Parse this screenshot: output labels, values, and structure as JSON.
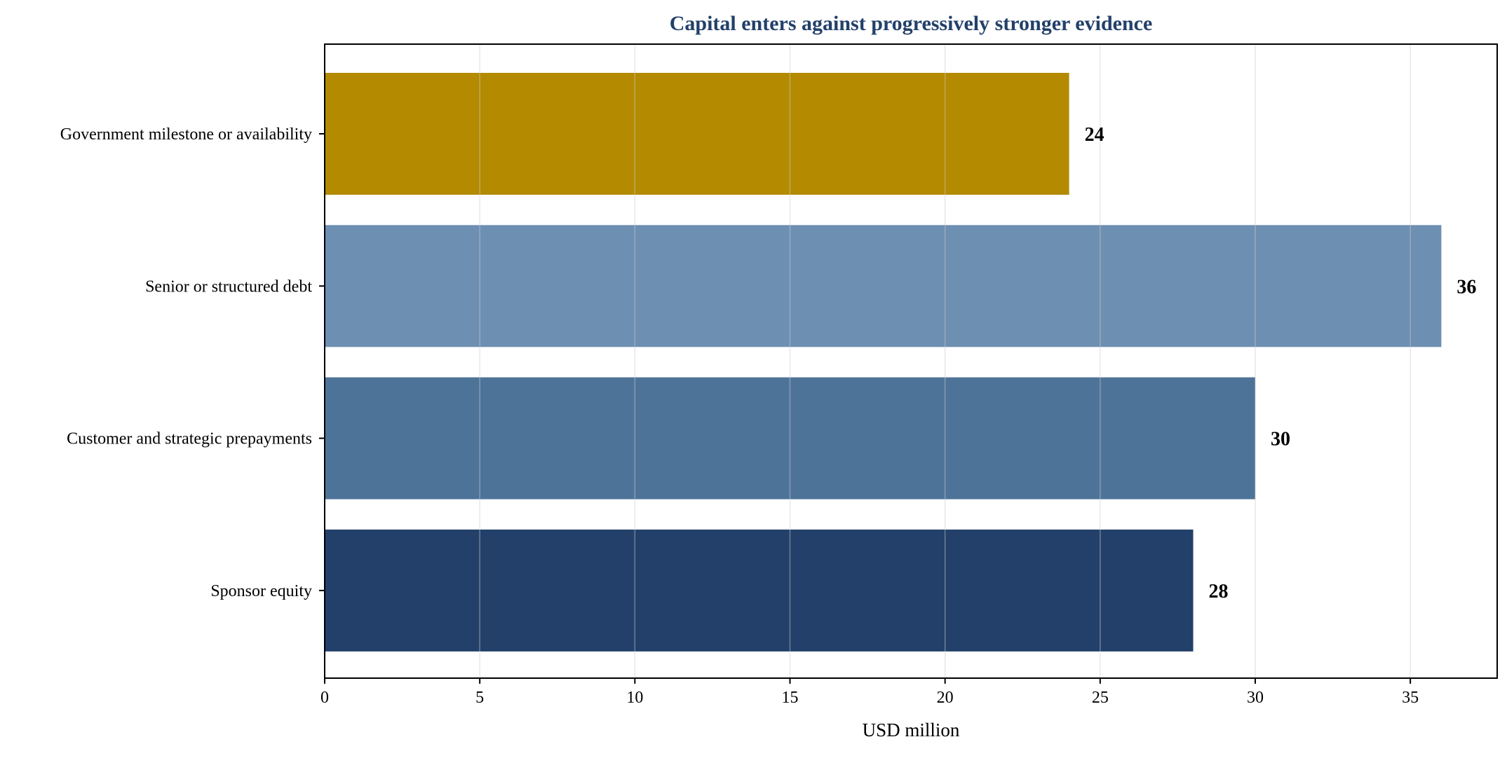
{
  "chart_data": {
    "type": "bar",
    "orientation": "horizontal",
    "title": "Capital enters against progressively stronger evidence",
    "xlabel": "USD million",
    "ylabel": "",
    "categories": [
      "Government milestone or availability",
      "Senior or structured debt",
      "Customer and strategic prepayments",
      "Sponsor equity"
    ],
    "values": [
      24,
      36,
      30,
      28
    ],
    "data_labels": [
      "24",
      "36",
      "30",
      "28"
    ],
    "bar_colors": [
      "#b38a00",
      "#6d8fb2",
      "#4e7399",
      "#224069"
    ],
    "title_color": "#224069",
    "xlim": [
      0,
      37.8
    ],
    "xticks": [
      0,
      5,
      10,
      15,
      20,
      25,
      30,
      35
    ],
    "xtick_labels": [
      "0",
      "5",
      "10",
      "15",
      "20",
      "25",
      "30",
      "35"
    ],
    "grid": "vertical",
    "legend": "none"
  }
}
